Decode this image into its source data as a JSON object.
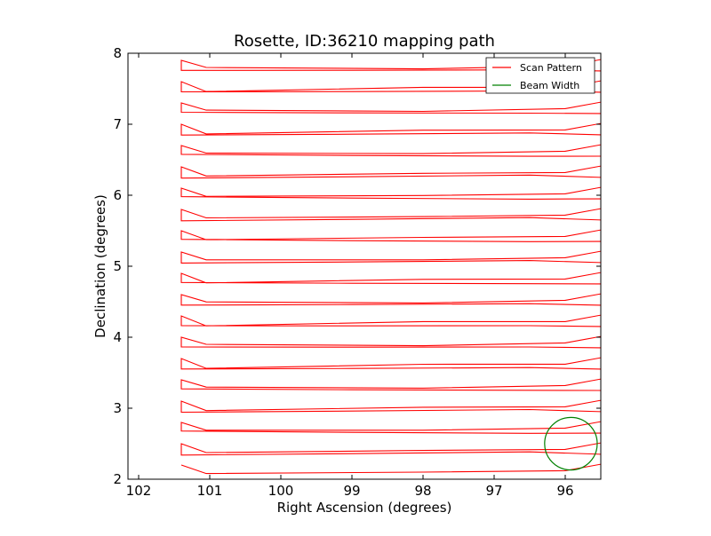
{
  "chart_data": {
    "type": "line",
    "title": "Rosette, ID:36210 mapping path",
    "xlabel": "Right Ascension (degrees)",
    "ylabel": "Declination (degrees)",
    "xlim": [
      102.15,
      95.5
    ],
    "ylim": [
      2,
      8
    ],
    "x_reversed": true,
    "xticks": [
      102,
      101,
      100,
      99,
      98,
      97,
      96
    ],
    "yticks": [
      2,
      3,
      4,
      5,
      6,
      7,
      8
    ],
    "grid": false,
    "legend_placement": "top-right",
    "series": [
      {
        "name": "Scan Pattern",
        "color": "#ff0000",
        "x_left": 101.4,
        "x_right": 95.5,
        "dec_start": 2.2,
        "dec_end": 7.95,
        "dec_step": 0.15
      },
      {
        "name": "Beam Width",
        "color": "#008000",
        "shape": "circle",
        "center": [
          95.92,
          2.5
        ],
        "radius_deg": 0.37
      }
    ]
  }
}
